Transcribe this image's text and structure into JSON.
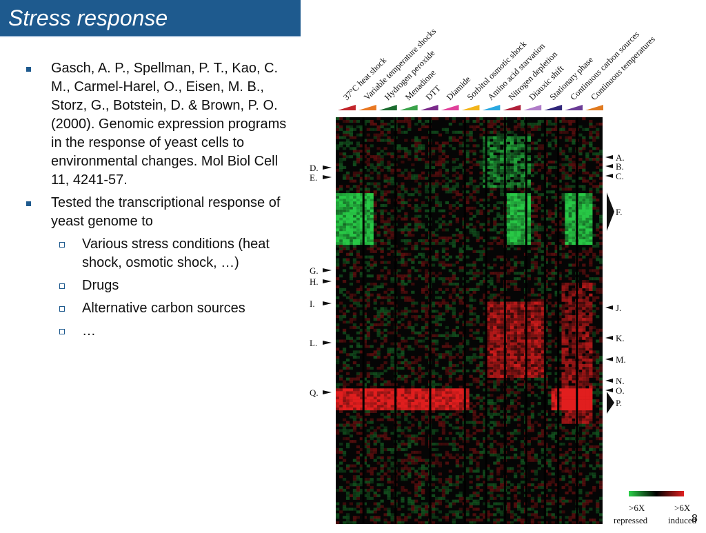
{
  "slide": {
    "title": "Stress response",
    "page_number": "8"
  },
  "bullets": [
    {
      "text": "Gasch, A. P., Spellman, P. T., Kao, C. M., Carmel-Harel, O., Eisen, M. B., Storz, G., Botstein, D. & Brown, P. O. (2000). Genomic expression programs in the response of yeast cells to environmental changes. Mol Biol Cell 11, 4241-57."
    },
    {
      "text": "Tested the transcriptional response of yeast genome to",
      "sub": [
        "Various stress conditions (heat shock, osmotic shock, …)",
        "Drugs",
        "Alternative carbon sources",
        "…"
      ]
    }
  ],
  "figure": {
    "conditions": [
      {
        "label": "37°C heat shock",
        "color": "#c2242a"
      },
      {
        "label": "Variable temperature shocks",
        "color": "#e87722"
      },
      {
        "label": "Hydrogen peroxide",
        "color": "#1b6b2e"
      },
      {
        "label": "Menadione",
        "color": "#3aa24a"
      },
      {
        "label": "DTT",
        "color": "#7a2a8a"
      },
      {
        "label": "Diamide",
        "color": "#e0409a"
      },
      {
        "label": "Sorbitol osmotic shock",
        "color": "#f2b41a"
      },
      {
        "label": "Amino acid starvation",
        "color": "#2aa8e0"
      },
      {
        "label": "Nitrogen depletion",
        "color": "#b0203a"
      },
      {
        "label": "Diauxic shift",
        "color": "#b07cc8"
      },
      {
        "label": "Stationary phase",
        "color": "#30267a"
      },
      {
        "label": "Continuous carbon sources",
        "color": "#6a3c96"
      },
      {
        "label": "Continuous temperatures",
        "color": "#e07a20"
      }
    ],
    "left_markers": [
      "D.",
      "E.",
      "G.",
      "H.",
      "I.",
      "L.",
      "Q."
    ],
    "right_markers": [
      "A.",
      "B.",
      "C.",
      "F.",
      "J.",
      "K.",
      "M.",
      "N.",
      "O.",
      "P."
    ],
    "legend": {
      "left_value": ">6X",
      "left_caption": "repressed",
      "right_value": ">6X",
      "right_caption": "induced",
      "colors": {
        "repressed": "#2cd14a",
        "neutral": "#000000",
        "induced": "#e02020"
      }
    }
  }
}
